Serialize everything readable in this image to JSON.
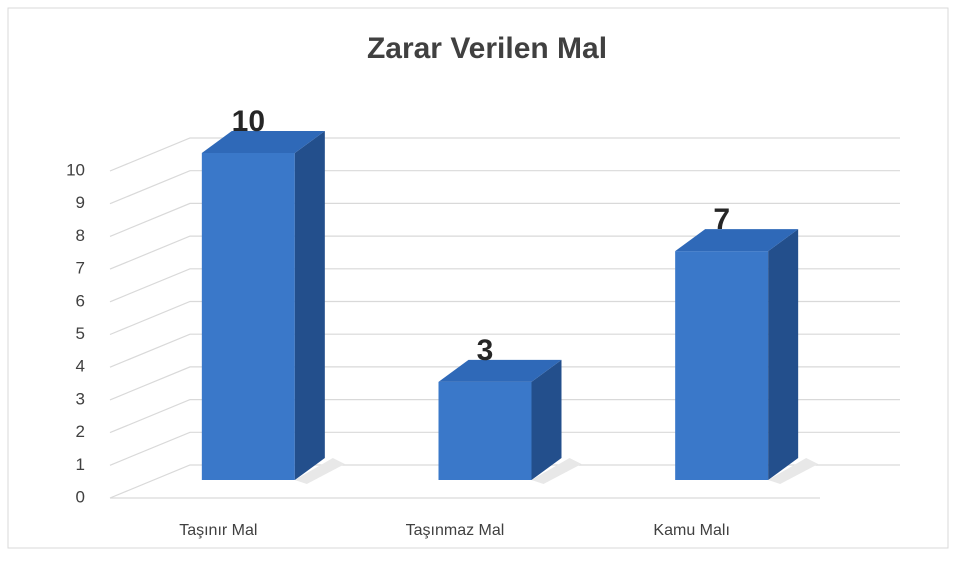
{
  "chart_data": {
    "type": "bar3d",
    "title": "Zarar Verilen Mal",
    "categories": [
      "Taşınır Mal",
      "Taşınmaz Mal",
      "Kamu Malı"
    ],
    "values": [
      10,
      3,
      7
    ],
    "color": "#3a78c9",
    "ylim": [
      0,
      10
    ],
    "yticks": [
      0,
      1,
      2,
      3,
      4,
      5,
      6,
      7,
      8,
      9,
      10
    ],
    "grid": true
  }
}
